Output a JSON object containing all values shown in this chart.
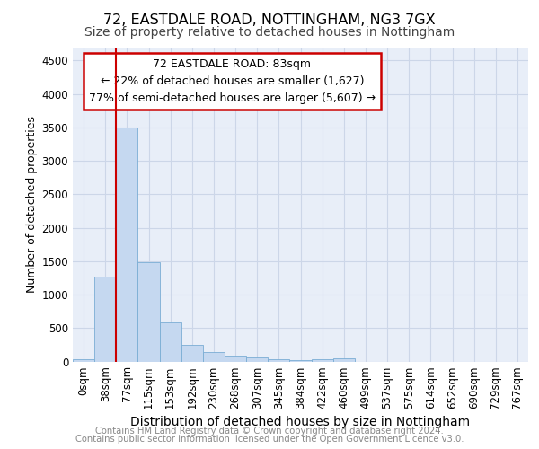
{
  "title1": "72, EASTDALE ROAD, NOTTINGHAM, NG3 7GX",
  "title2": "Size of property relative to detached houses in Nottingham",
  "xlabel": "Distribution of detached houses by size in Nottingham",
  "ylabel": "Number of detached properties",
  "bin_labels": [
    "0sqm",
    "38sqm",
    "77sqm",
    "115sqm",
    "153sqm",
    "192sqm",
    "230sqm",
    "268sqm",
    "307sqm",
    "345sqm",
    "384sqm",
    "422sqm",
    "460sqm",
    "499sqm",
    "537sqm",
    "575sqm",
    "614sqm",
    "652sqm",
    "690sqm",
    "729sqm",
    "767sqm"
  ],
  "bar_values": [
    30,
    1270,
    3500,
    1480,
    580,
    250,
    140,
    90,
    65,
    35,
    20,
    40,
    50,
    0,
    0,
    0,
    0,
    0,
    0,
    0,
    0
  ],
  "bar_color": "#c5d8f0",
  "bar_edge_color": "#7aadd4",
  "red_line_x": 1.5,
  "annotation_title": "72 EASTDALE ROAD: 83sqm",
  "annotation_line1": "← 22% of detached houses are smaller (1,627)",
  "annotation_line2": "77% of semi-detached houses are larger (5,607) →",
  "annotation_box_color": "#ffffff",
  "annotation_box_edge": "#cc0000",
  "vline_color": "#cc0000",
  "ylim": [
    0,
    4700
  ],
  "yticks": [
    0,
    500,
    1000,
    1500,
    2000,
    2500,
    3000,
    3500,
    4000,
    4500
  ],
  "grid_color": "#ccd6e8",
  "background_color": "#e8eef8",
  "footer1": "Contains HM Land Registry data © Crown copyright and database right 2024.",
  "footer2": "Contains public sector information licensed under the Open Government Licence v3.0.",
  "title1_fontsize": 11.5,
  "title2_fontsize": 10,
  "xlabel_fontsize": 10,
  "ylabel_fontsize": 9,
  "tick_fontsize": 8.5,
  "footer_fontsize": 7.2,
  "ann_fontsize": 9.0
}
